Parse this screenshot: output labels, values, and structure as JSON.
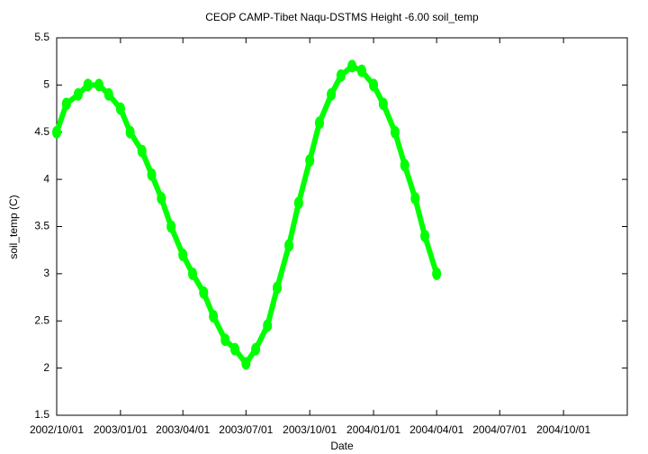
{
  "chart_data": {
    "type": "line",
    "title": "CEOP CAMP-Tibet Naqu-DSTMS Height -6.00 soil_temp",
    "x_label": "Date",
    "y_label": "soil_temp (C)",
    "xlim": [
      "2002/10/01",
      "2005/01/01"
    ],
    "xticks": [
      "2002/10/01",
      "2003/01/01",
      "2003/04/01",
      "2003/07/01",
      "2003/10/01",
      "2004/01/01",
      "2004/04/01",
      "2004/07/01",
      "2004/10/01"
    ],
    "ylim": [
      1.5,
      5.5
    ],
    "yticks": [
      1.5,
      2,
      2.5,
      3,
      3.5,
      4,
      4.5,
      5,
      5.5
    ],
    "grid": false,
    "series": [
      {
        "color": "#00ff00",
        "x": [
          "2002/10/01",
          "2002/10/15",
          "2002/11/01",
          "2002/11/15",
          "2002/12/01",
          "2002/12/15",
          "2003/01/01",
          "2003/01/15",
          "2003/02/01",
          "2003/02/15",
          "2003/03/01",
          "2003/03/15",
          "2003/04/01",
          "2003/04/15",
          "2003/05/01",
          "2003/05/15",
          "2003/06/01",
          "2003/06/15",
          "2003/07/01",
          "2003/07/15",
          "2003/08/01",
          "2003/08/15",
          "2003/09/01",
          "2003/09/15",
          "2003/10/01",
          "2003/10/15",
          "2003/11/01",
          "2003/11/15",
          "2003/12/01",
          "2003/12/15",
          "2004/01/01",
          "2004/01/15",
          "2004/02/01",
          "2004/02/15",
          "2004/03/01",
          "2004/03/15",
          "2004/04/01"
        ],
        "values": [
          4.5,
          4.8,
          4.9,
          5.0,
          5.0,
          4.9,
          4.75,
          4.5,
          4.3,
          4.05,
          3.8,
          3.5,
          3.2,
          3.0,
          2.8,
          2.55,
          2.3,
          2.2,
          2.05,
          2.2,
          2.45,
          2.85,
          3.3,
          3.75,
          4.2,
          4.6,
          4.9,
          5.1,
          5.2,
          5.15,
          5.0,
          4.8,
          4.5,
          4.15,
          3.8,
          3.4,
          3.0
        ]
      }
    ]
  }
}
